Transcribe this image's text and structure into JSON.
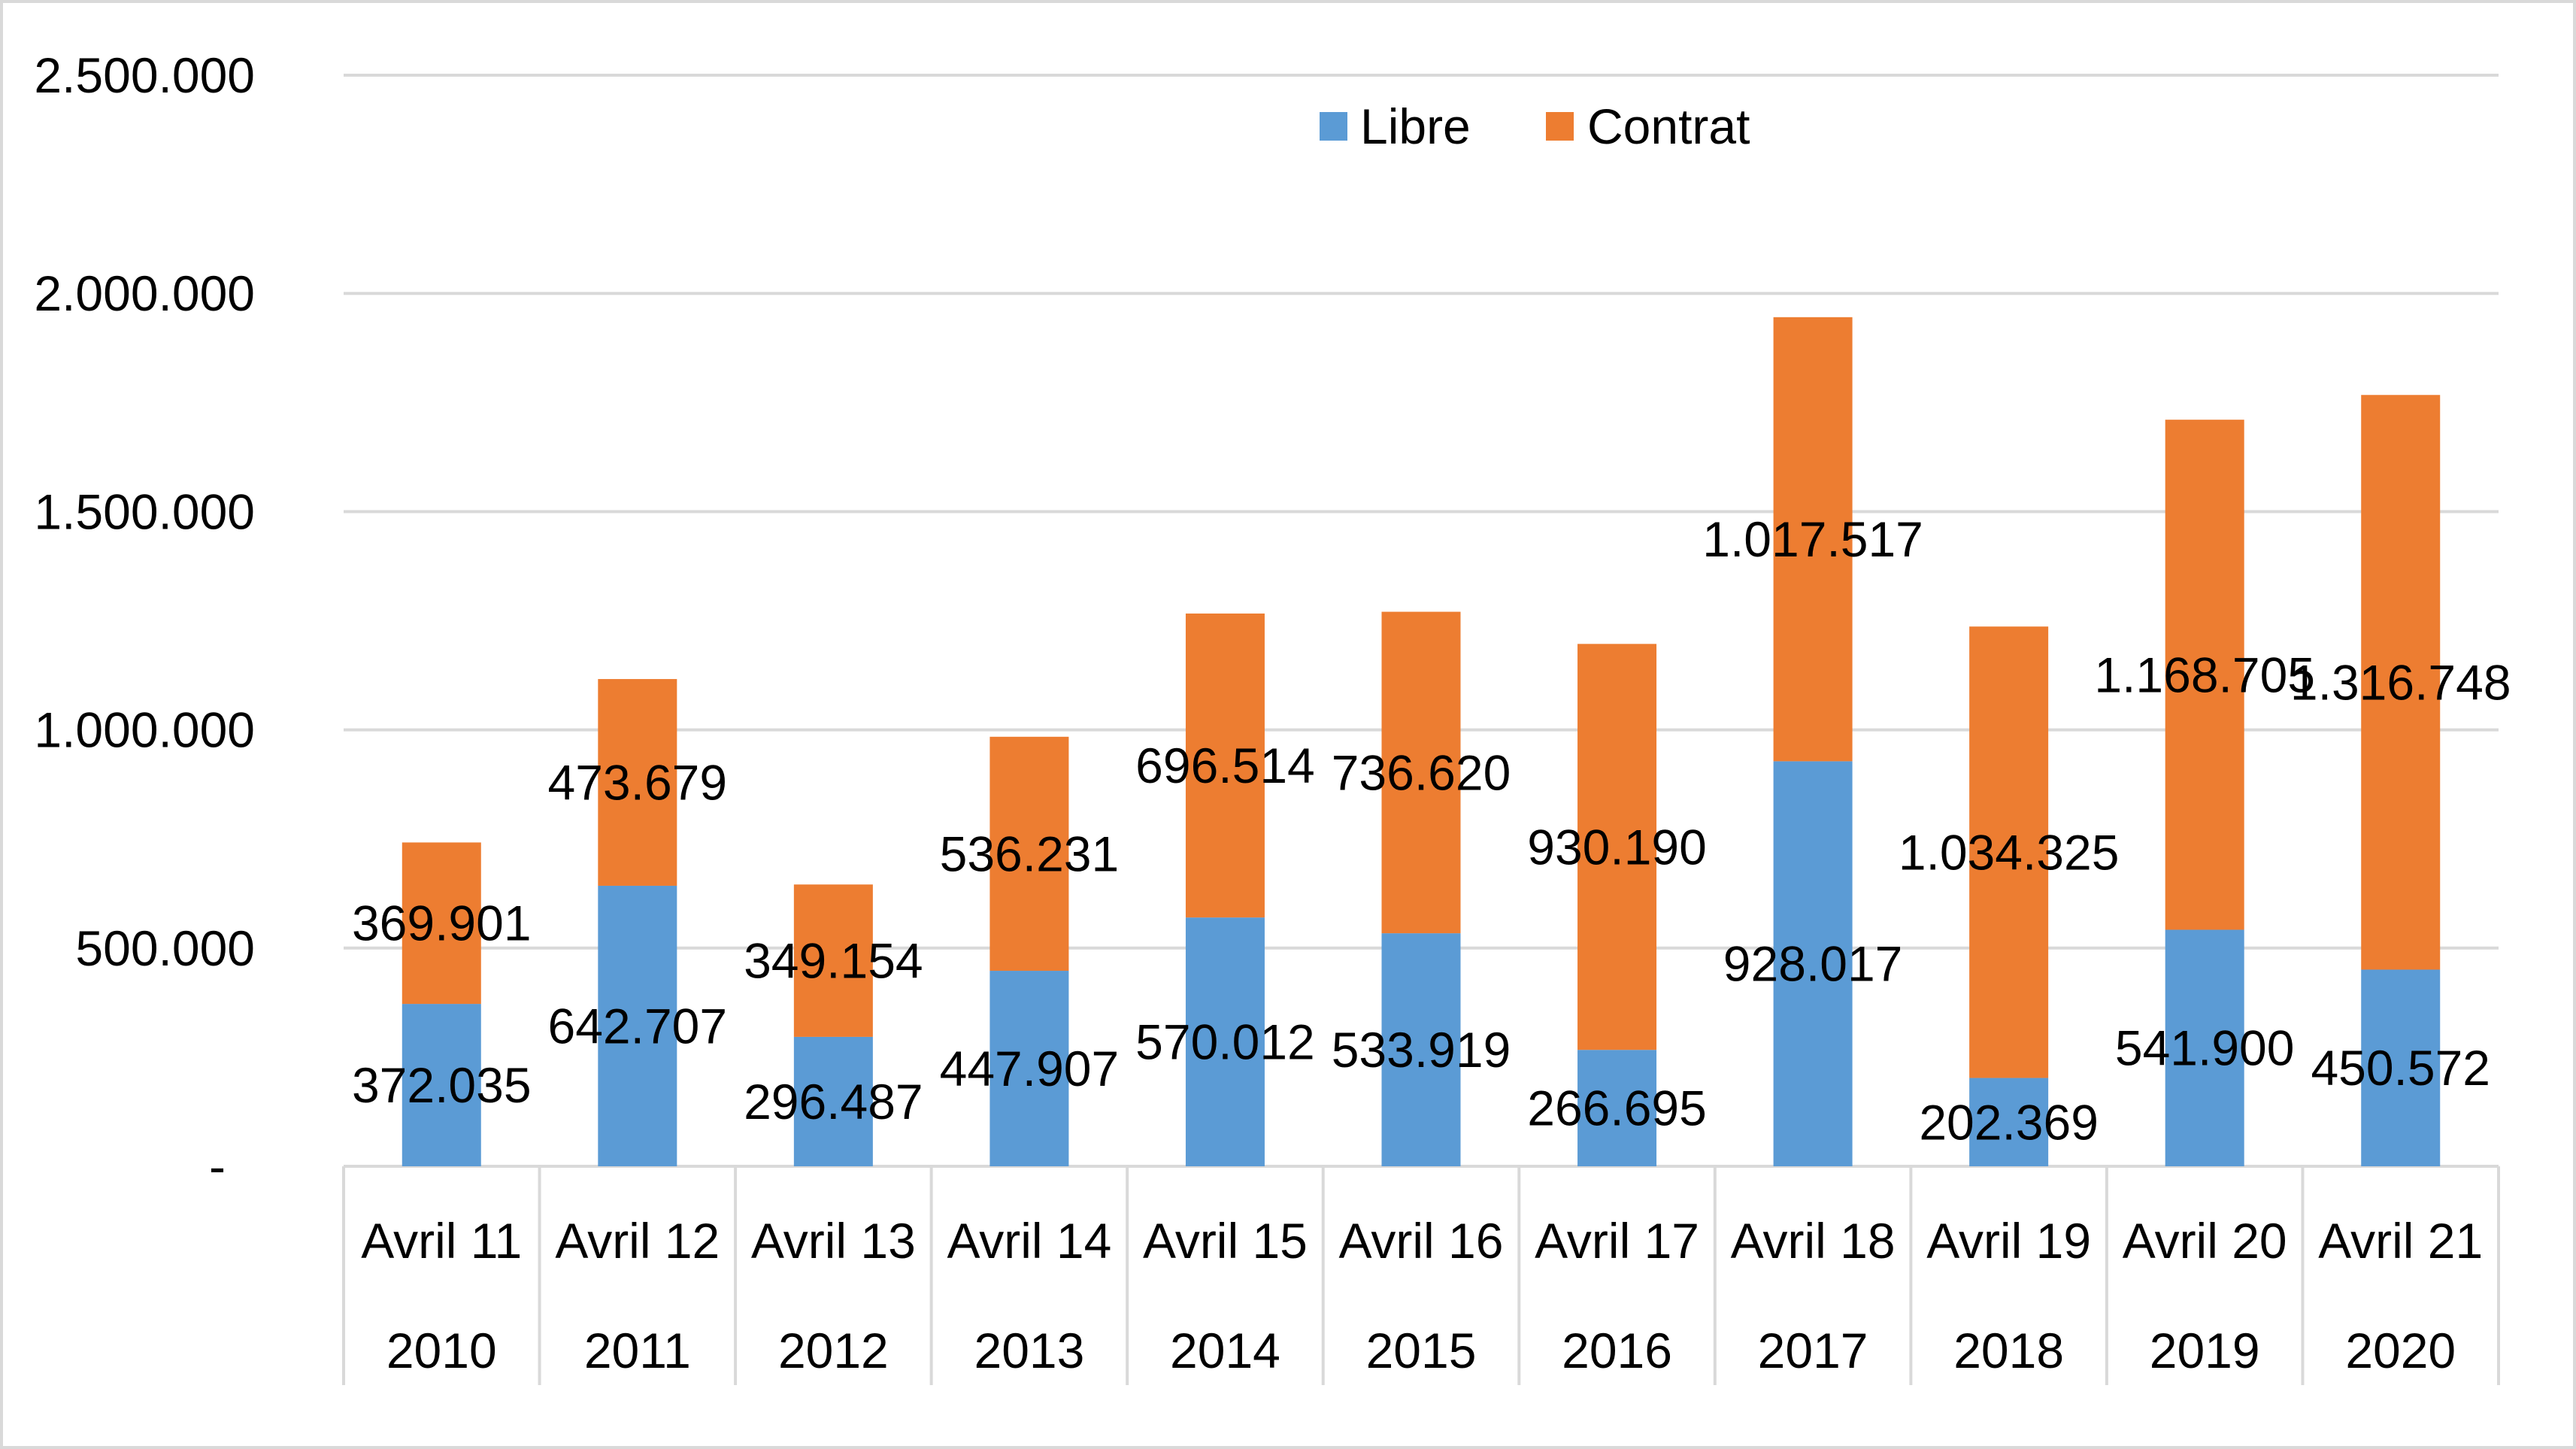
{
  "chart_data": {
    "type": "bar",
    "stacked": true,
    "categories": [
      "Avril 11",
      "Avril 12",
      "Avril 13",
      "Avril 14",
      "Avril 15",
      "Avril 16",
      "Avril 17",
      "Avril 18",
      "Avril 19",
      "Avril 20",
      "Avril 21"
    ],
    "category_years": [
      "2010",
      "2011",
      "2012",
      "2013",
      "2014",
      "2015",
      "2016",
      "2017",
      "2018",
      "2019",
      "2020"
    ],
    "series": [
      {
        "name": "Libre",
        "color": "#5B9BD5",
        "values": [
          372035,
          642707,
          296487,
          447907,
          570012,
          533919,
          266695,
          928017,
          202369,
          541900,
          450572
        ],
        "labels": [
          "372.035",
          "642.707",
          "296.487",
          "447.907",
          "570.012",
          "533.919",
          "266.695",
          "928.017",
          "202.369",
          "541.900",
          "450.572"
        ]
      },
      {
        "name": "Contrat",
        "color": "#ED7D31",
        "values": [
          369901,
          473679,
          349154,
          536231,
          696514,
          736620,
          930190,
          1017517,
          1034325,
          1168705,
          1316748
        ],
        "labels": [
          "369.901",
          "473.679",
          "349.154",
          "536.231",
          "696.514",
          "736.620",
          "930.190",
          "1.017.517",
          "1.034.325",
          "1.168.705",
          "1.316.748"
        ]
      }
    ],
    "y_ticks": [
      0,
      500000,
      1000000,
      1500000,
      2000000,
      2500000
    ],
    "y_tick_labels": [
      "-",
      "500.000",
      "1.000.000",
      "1.500.000",
      "2.000.000",
      "2.500.000"
    ],
    "ylim": [
      0,
      2500000
    ],
    "grid": true,
    "gridline_color": "#D9D9D9",
    "legend_position": "top"
  }
}
